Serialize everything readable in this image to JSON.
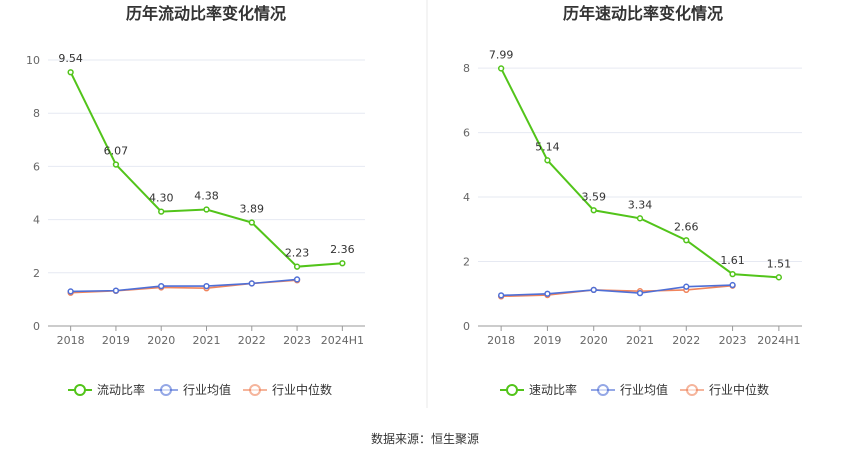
{
  "colors": {
    "main": "#52c41a",
    "avg": "#4f6fd6",
    "median": "#f0845c",
    "grid": "#e6e9f2",
    "axis": "#999999",
    "divider": "#e8e8e8"
  },
  "source_text": "数据来源：恒生聚源",
  "chart_data": [
    {
      "type": "line",
      "title": "历年流动比率变化情况",
      "categories": [
        "2018",
        "2019",
        "2020",
        "2021",
        "2022",
        "2023",
        "2024H1"
      ],
      "ylim": [
        0,
        10
      ],
      "yticks": [
        0,
        2,
        4,
        6,
        8,
        10
      ],
      "grid": true,
      "legend_position": "bottom",
      "series": [
        {
          "name": "流动比率",
          "color_key": "main",
          "labels": true,
          "values": [
            9.54,
            6.07,
            4.3,
            4.38,
            3.89,
            2.23,
            2.36
          ],
          "label_text": [
            "9.54",
            "6.07",
            "4.30",
            "4.38",
            "3.89",
            "2.23",
            "2.36"
          ]
        },
        {
          "name": "行业均值",
          "color_key": "avg",
          "labels": false,
          "values": [
            1.3,
            1.33,
            1.5,
            1.5,
            1.6,
            1.75,
            null
          ]
        },
        {
          "name": "行业中位数",
          "color_key": "median",
          "labels": false,
          "values": [
            1.25,
            1.32,
            1.45,
            1.42,
            1.6,
            1.72,
            null
          ]
        }
      ]
    },
    {
      "type": "line",
      "title": "历年速动比率变化情况",
      "categories": [
        "2018",
        "2019",
        "2020",
        "2021",
        "2022",
        "2023",
        "2024H1"
      ],
      "ylim": [
        0,
        8.5
      ],
      "yticks": [
        0,
        2,
        4,
        6,
        8
      ],
      "grid": true,
      "legend_position": "bottom",
      "series": [
        {
          "name": "速动比率",
          "color_key": "main",
          "labels": true,
          "values": [
            7.99,
            5.14,
            3.59,
            3.34,
            2.66,
            1.61,
            1.51
          ],
          "label_text": [
            "7.99",
            "5.14",
            "3.59",
            "3.34",
            "2.66",
            "1.61",
            "1.51"
          ]
        },
        {
          "name": "行业均值",
          "color_key": "avg",
          "labels": false,
          "values": [
            0.95,
            1.0,
            1.12,
            1.02,
            1.22,
            1.27,
            null
          ]
        },
        {
          "name": "行业中位数",
          "color_key": "median",
          "labels": false,
          "values": [
            0.92,
            0.96,
            1.12,
            1.08,
            1.12,
            1.25,
            null
          ]
        }
      ]
    }
  ]
}
